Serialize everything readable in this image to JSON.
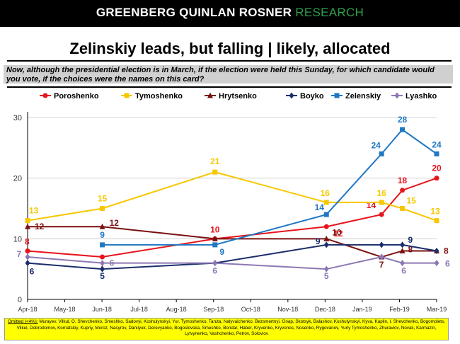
{
  "brand": {
    "main": "GREENBERG QUINLAN ROSNER",
    "accent": "RESEARCH"
  },
  "title": "Zelinskiy leads, but falling | likely, allocated",
  "question": "Now, although the presidential election is in March, if the election were held this Sunday, for which candidate would you vote, if the choices were the names on this card?",
  "footnote": {
    "label": "Omitted (<4%):",
    "text": "Murayev, Vilkul, O. Shevchenko, Smeshko, Sadovyi, Koshulynskyi, Yur. Tymoshenko, Taruta, Nalyvaichenko, Bezsmertnyi, Gnap, Skotsyk, Balashov, Koshulynskyi, Kyva, Kaplin, I. Shevchenko, Bogomolets, Vilkul, Dobrodomov, Kornatskiy, Kupriy, Moroz, Nasyrov, Danilyuk, Derevyanko, Bogoslovska, Smeshko, Bondar, Haber, Kryvenko, Kryvonos, Nosenko, Rygovanov, Yuriy Tymoshenko, Zhuravlov, Novak, Karmazin, Lytvynenko, Vashchenko, Petrov, Soloviov"
  },
  "chart_data": {
    "type": "line",
    "x_ticks": [
      "Apr-18",
      "May-18",
      "Jun-18",
      "Jul-18",
      "Aug-18",
      "Sep-18",
      "Oct-18",
      "Nov-18",
      "Dec-18",
      "Jan-19",
      "Feb-19",
      "Mar-19"
    ],
    "ylim": [
      0,
      30
    ],
    "y_ticks": [
      0,
      10,
      20,
      30
    ],
    "grid": "horizontal",
    "legend_position": "top",
    "series": [
      {
        "name": "Poroshenko",
        "color": "#e8141c",
        "marker": "circle",
        "points": [
          [
            "2018-04-01",
            8
          ],
          [
            "2018-06-01",
            7
          ],
          [
            "2018-09-01",
            10
          ],
          [
            "2018-12-01",
            12
          ],
          [
            "2019-01-15",
            14
          ],
          [
            "2019-02-01",
            18
          ],
          [
            "2019-03-01",
            20
          ]
        ]
      },
      {
        "name": "Tymoshenko",
        "color": "#f5c800",
        "marker": "square",
        "points": [
          [
            "2018-04-01",
            13
          ],
          [
            "2018-06-01",
            15
          ],
          [
            "2018-09-01",
            21
          ],
          [
            "2018-12-01",
            16
          ],
          [
            "2019-01-15",
            16
          ],
          [
            "2019-02-01",
            15
          ],
          [
            "2019-03-01",
            13
          ]
        ]
      },
      {
        "name": "Hrytsenko",
        "color": "#7a1010",
        "marker": "triangle",
        "points": [
          [
            "2018-04-01",
            12
          ],
          [
            "2018-06-01",
            12
          ],
          [
            "2018-09-01",
            10
          ],
          [
            "2018-12-01",
            10
          ],
          [
            "2019-01-15",
            7
          ],
          [
            "2019-02-01",
            8
          ],
          [
            "2019-03-01",
            8
          ]
        ]
      },
      {
        "name": "Boyko",
        "color": "#1a2e6b",
        "marker": "diamond",
        "points": [
          [
            "2018-04-01",
            6
          ],
          [
            "2018-06-01",
            5
          ],
          [
            "2018-09-01",
            6
          ],
          [
            "2018-12-01",
            9
          ],
          [
            "2019-01-15",
            9
          ],
          [
            "2019-02-01",
            9
          ],
          [
            "2019-03-01",
            8
          ]
        ]
      },
      {
        "name": "Zelenskiy",
        "color": "#1f77c4",
        "marker": "square",
        "points": [
          [
            "2018-06-01",
            9
          ],
          [
            "2018-09-01",
            9
          ],
          [
            "2018-12-01",
            14
          ],
          [
            "2019-01-15",
            24
          ],
          [
            "2019-02-01",
            28
          ],
          [
            "2019-03-01",
            24
          ]
        ]
      },
      {
        "name": "Lyashko",
        "color": "#8c78b4",
        "marker": "diamond",
        "points": [
          [
            "2018-04-01",
            7
          ],
          [
            "2018-06-01",
            6
          ],
          [
            "2018-09-01",
            6
          ],
          [
            "2018-12-01",
            5
          ],
          [
            "2019-01-15",
            7
          ],
          [
            "2019-02-01",
            6
          ],
          [
            "2019-03-01",
            6
          ]
        ]
      }
    ]
  }
}
